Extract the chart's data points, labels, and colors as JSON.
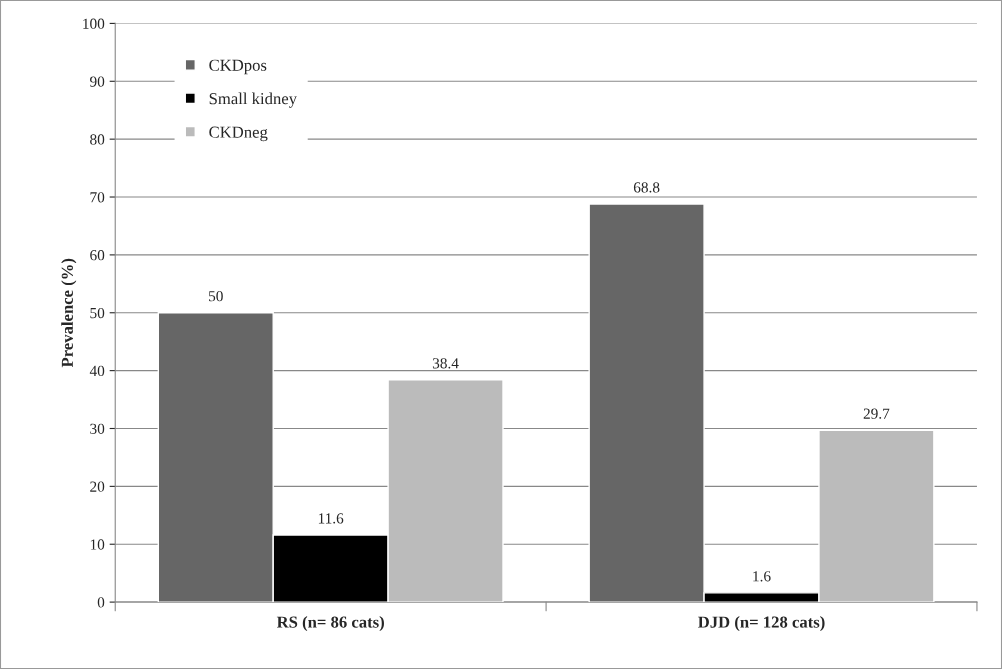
{
  "chart_data": {
    "type": "bar",
    "ylabel": "Prevalence (%)",
    "categories": [
      "RS (n= 86 cats)",
      "DJD (n= 128 cats)"
    ],
    "series": [
      {
        "name": "CKDpos",
        "color": "#666666",
        "values": [
          50,
          68.8
        ]
      },
      {
        "name": "Small kidney",
        "color": "#000000",
        "values": [
          11.6,
          1.6
        ]
      },
      {
        "name": "CKDneg",
        "color": "#bbbbbb",
        "values": [
          38.4,
          29.7
        ]
      }
    ],
    "ylim": [
      0,
      100
    ],
    "yticks": [
      0,
      10,
      20,
      30,
      40,
      50,
      60,
      70,
      80,
      90,
      100
    ],
    "grid": "y",
    "legend": "top left",
    "data_labels": true
  }
}
